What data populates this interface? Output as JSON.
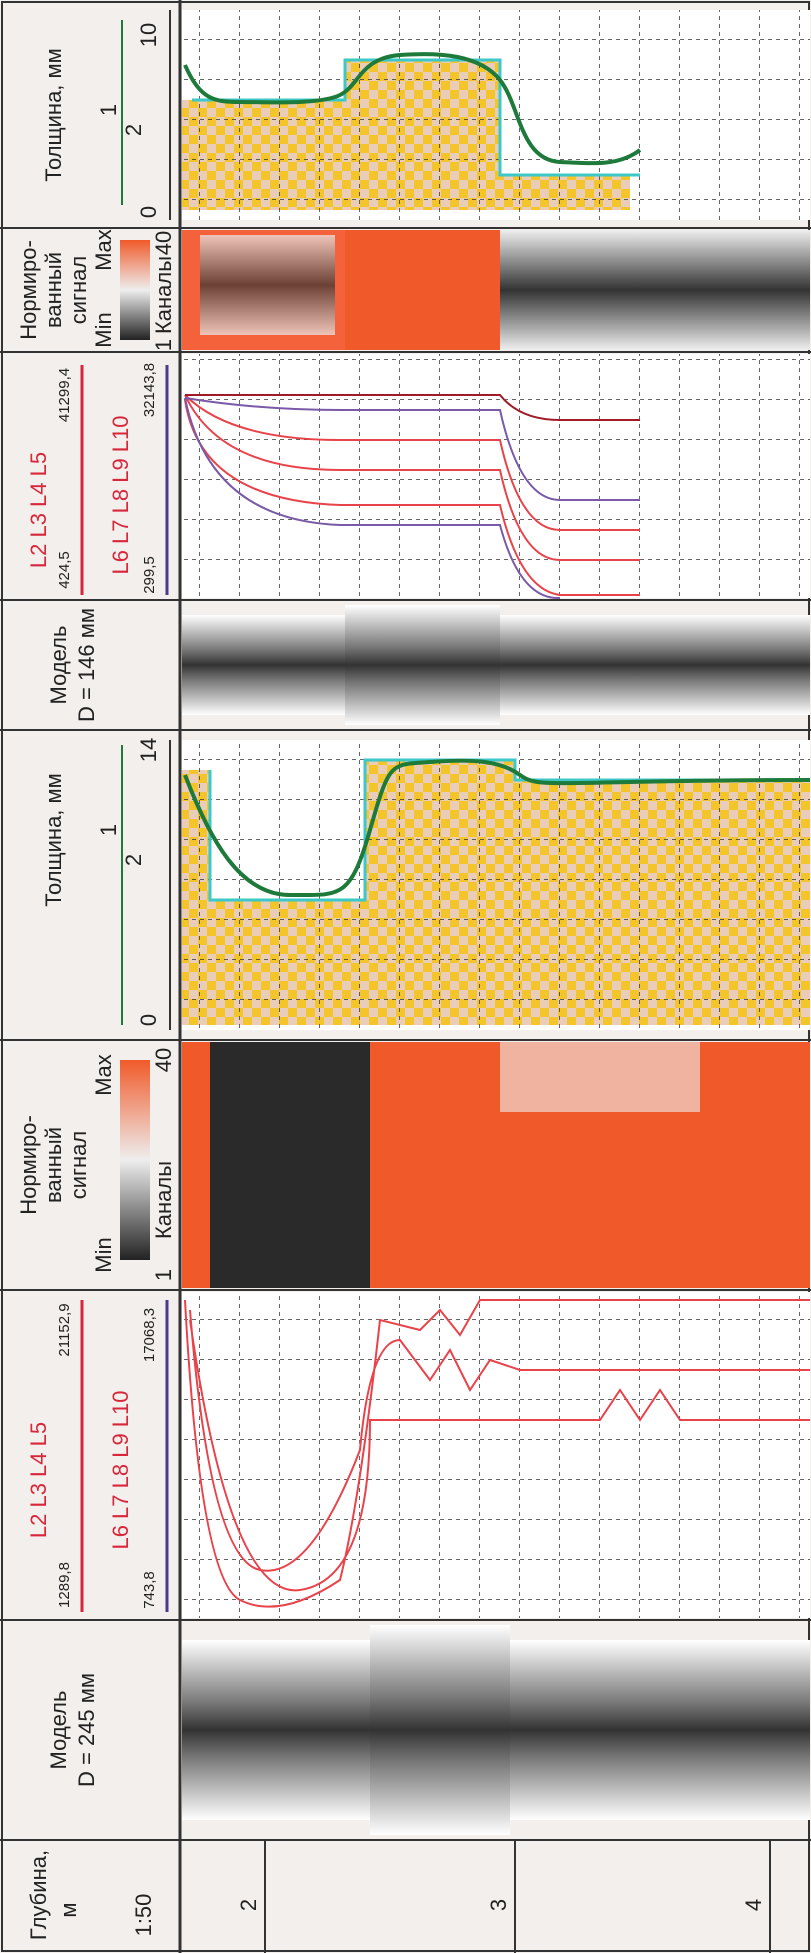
{
  "depth_track": {
    "title": "Глубина,",
    "unit": "м",
    "scale": "1:50",
    "labels": [
      "2",
      "3",
      "4"
    ]
  },
  "blocks": [
    {
      "model": {
        "title": "Модель",
        "diameter": "D = 245 мм"
      },
      "curves": {
        "group1": "L2 L3 L4 L5",
        "group1_min": "1289,8",
        "group1_max": "21152,9",
        "group2": "L6 L7 L8 L9 L10",
        "group2_min": "743,8",
        "group2_max": "17068,3"
      },
      "signal": {
        "lines": [
          "Нормиро-",
          "ванный",
          "сигнал"
        ],
        "min": "Min",
        "max": "Max",
        "channels_from": "1",
        "channels": "Каналы",
        "channels_to": "40"
      },
      "thickness": {
        "title": "Толщина, мм",
        "axis_min": "0",
        "curve1": "1",
        "curve2": "2",
        "axis_max": "14"
      }
    },
    {
      "model": {
        "title": "Модель",
        "diameter": "D = 146 мм"
      },
      "curves": {
        "group1": "L2 L3 L4 L5",
        "group1_min": "424,5",
        "group1_max": "41299,4",
        "group2": "L6 L7 L8 L9 L10",
        "group2_min": "299,5",
        "group2_max": "32143,8"
      },
      "signal": {
        "lines": [
          "Нормиро-",
          "ванный",
          "сигнал"
        ],
        "min": "Min",
        "max": "Max",
        "channels_from": "1",
        "channels": "Каналы",
        "channels_to": "40"
      },
      "thickness": {
        "title": "Толщина, мм",
        "axis_min": "0",
        "curve1": "1",
        "curve2": "2",
        "axis_max": "10"
      }
    }
  ]
}
